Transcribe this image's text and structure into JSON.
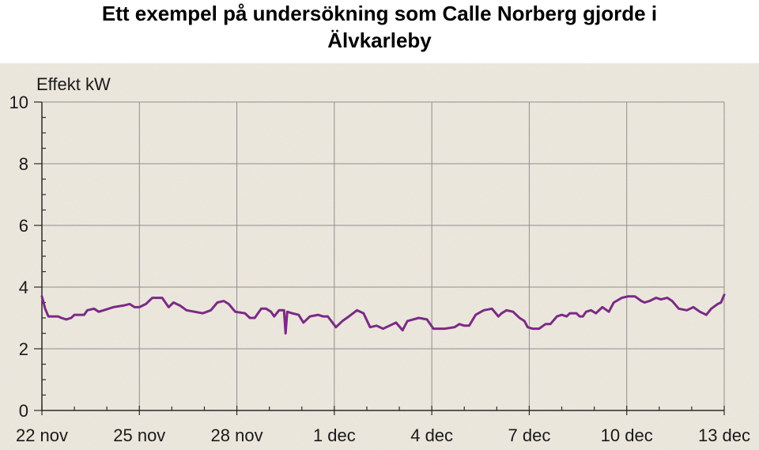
{
  "title": {
    "line1": "Ett exempel på undersökning som Calle Norberg gjorde i",
    "line2": "Älvkarleby"
  },
  "colors": {
    "background": "#efeae0",
    "grid": "#8f8f8f",
    "axis": "#2a2a2a",
    "series": "#7b2a86",
    "text": "#1a1a1a"
  },
  "chart_data": {
    "type": "line",
    "ylabel": "Effekt kW",
    "xlabel": "",
    "ylim": [
      0,
      10
    ],
    "xlim": [
      0,
      21
    ],
    "yticks": [
      0,
      2,
      4,
      6,
      8,
      10
    ],
    "xticks": [
      {
        "day": 0,
        "label": "22 nov"
      },
      {
        "day": 3,
        "label": "25 nov"
      },
      {
        "day": 6,
        "label": "28 nov"
      },
      {
        "day": 9,
        "label": "1 dec"
      },
      {
        "day": 12,
        "label": "4 dec"
      },
      {
        "day": 15,
        "label": "7 dec"
      },
      {
        "day": 18,
        "label": "10 dec"
      },
      {
        "day": 21,
        "label": "13 dec"
      }
    ],
    "grid": true,
    "series": [
      {
        "values": [
          [
            0.0,
            3.7
          ],
          [
            0.1,
            3.3
          ],
          [
            0.2,
            3.05
          ],
          [
            0.5,
            3.05
          ],
          [
            0.6,
            3.0
          ],
          [
            0.75,
            2.95
          ],
          [
            0.9,
            3.0
          ],
          [
            1.0,
            3.1
          ],
          [
            1.3,
            3.1
          ],
          [
            1.4,
            3.25
          ],
          [
            1.6,
            3.3
          ],
          [
            1.75,
            3.2
          ],
          [
            1.9,
            3.25
          ],
          [
            2.2,
            3.35
          ],
          [
            2.5,
            3.4
          ],
          [
            2.7,
            3.45
          ],
          [
            2.85,
            3.35
          ],
          [
            3.0,
            3.35
          ],
          [
            3.2,
            3.45
          ],
          [
            3.4,
            3.65
          ],
          [
            3.7,
            3.65
          ],
          [
            3.9,
            3.35
          ],
          [
            4.05,
            3.5
          ],
          [
            4.25,
            3.4
          ],
          [
            4.45,
            3.25
          ],
          [
            4.7,
            3.2
          ],
          [
            4.95,
            3.15
          ],
          [
            5.2,
            3.25
          ],
          [
            5.4,
            3.5
          ],
          [
            5.6,
            3.55
          ],
          [
            5.75,
            3.45
          ],
          [
            5.95,
            3.2
          ],
          [
            6.25,
            3.15
          ],
          [
            6.4,
            3.0
          ],
          [
            6.55,
            3.0
          ],
          [
            6.75,
            3.3
          ],
          [
            6.9,
            3.3
          ],
          [
            7.05,
            3.2
          ],
          [
            7.15,
            3.05
          ],
          [
            7.3,
            3.25
          ],
          [
            7.45,
            3.25
          ],
          [
            7.5,
            2.5
          ],
          [
            7.55,
            3.2
          ],
          [
            7.7,
            3.15
          ],
          [
            7.9,
            3.1
          ],
          [
            8.05,
            2.85
          ],
          [
            8.25,
            3.05
          ],
          [
            8.5,
            3.1
          ],
          [
            8.65,
            3.05
          ],
          [
            8.8,
            3.05
          ],
          [
            9.05,
            2.7
          ],
          [
            9.25,
            2.9
          ],
          [
            9.45,
            3.05
          ],
          [
            9.7,
            3.25
          ],
          [
            9.9,
            3.15
          ],
          [
            10.1,
            2.7
          ],
          [
            10.3,
            2.75
          ],
          [
            10.5,
            2.65
          ],
          [
            10.7,
            2.75
          ],
          [
            10.9,
            2.85
          ],
          [
            11.1,
            2.6
          ],
          [
            11.25,
            2.9
          ],
          [
            11.6,
            3.0
          ],
          [
            11.85,
            2.95
          ],
          [
            12.05,
            2.65
          ],
          [
            12.4,
            2.65
          ],
          [
            12.7,
            2.7
          ],
          [
            12.85,
            2.8
          ],
          [
            13.0,
            2.75
          ],
          [
            13.15,
            2.75
          ],
          [
            13.35,
            3.1
          ],
          [
            13.6,
            3.25
          ],
          [
            13.85,
            3.3
          ],
          [
            14.05,
            3.05
          ],
          [
            14.15,
            3.15
          ],
          [
            14.3,
            3.25
          ],
          [
            14.5,
            3.2
          ],
          [
            14.7,
            3.0
          ],
          [
            14.85,
            2.9
          ],
          [
            14.95,
            2.7
          ],
          [
            15.1,
            2.65
          ],
          [
            15.3,
            2.65
          ],
          [
            15.5,
            2.8
          ],
          [
            15.65,
            2.8
          ],
          [
            15.85,
            3.05
          ],
          [
            16.0,
            3.1
          ],
          [
            16.15,
            3.05
          ],
          [
            16.25,
            3.15
          ],
          [
            16.45,
            3.15
          ],
          [
            16.55,
            3.05
          ],
          [
            16.65,
            3.05
          ],
          [
            16.75,
            3.2
          ],
          [
            16.9,
            3.25
          ],
          [
            17.05,
            3.15
          ],
          [
            17.25,
            3.35
          ],
          [
            17.45,
            3.2
          ],
          [
            17.6,
            3.5
          ],
          [
            17.85,
            3.65
          ],
          [
            18.05,
            3.7
          ],
          [
            18.25,
            3.7
          ],
          [
            18.45,
            3.55
          ],
          [
            18.55,
            3.5
          ],
          [
            18.7,
            3.55
          ],
          [
            18.9,
            3.65
          ],
          [
            19.05,
            3.6
          ],
          [
            19.25,
            3.65
          ],
          [
            19.4,
            3.55
          ],
          [
            19.6,
            3.3
          ],
          [
            19.85,
            3.25
          ],
          [
            20.05,
            3.35
          ],
          [
            20.25,
            3.2
          ],
          [
            20.45,
            3.1
          ],
          [
            20.6,
            3.3
          ],
          [
            20.8,
            3.45
          ],
          [
            20.9,
            3.5
          ],
          [
            21.0,
            3.75
          ]
        ]
      }
    ]
  }
}
